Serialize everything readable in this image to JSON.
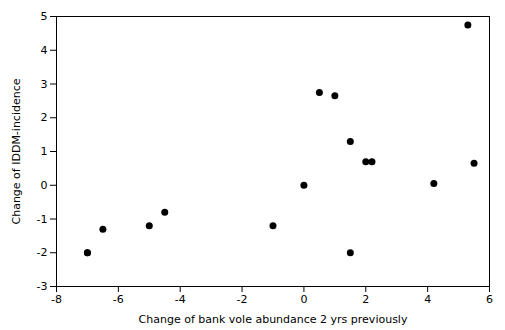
{
  "chart_data": {
    "type": "scatter",
    "x": [
      -7.0,
      -7.0,
      -6.5,
      -5.0,
      -4.5,
      -1.0,
      0.0,
      0.5,
      1.0,
      1.5,
      1.5,
      2.0,
      2.2,
      4.2,
      5.3,
      5.5
    ],
    "y": [
      -2.0,
      -2.0,
      -1.3,
      -1.2,
      -0.8,
      -1.2,
      0.0,
      2.75,
      2.65,
      -2.0,
      1.3,
      0.7,
      0.7,
      0.05,
      4.75,
      0.65
    ],
    "xlabel": "Change of bank vole abundance 2 yrs previously",
    "ylabel": "Change of IDDM-incidence",
    "xlim": [
      -8,
      6
    ],
    "ylim": [
      -3,
      5
    ],
    "xticks": [
      -8,
      -6,
      -4,
      -2,
      0,
      2,
      4,
      6
    ],
    "yticks": [
      -3,
      -2,
      -1,
      0,
      1,
      2,
      3,
      4,
      5
    ],
    "color": "black",
    "grid": false
  }
}
